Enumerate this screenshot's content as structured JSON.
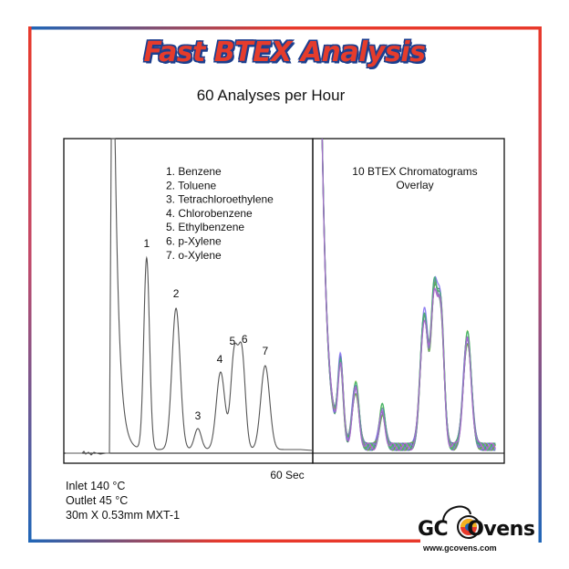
{
  "header": {
    "title": "Fast BTEX Analysis",
    "subtitle": "60 Analyses per Hour"
  },
  "colors": {
    "frame_top": "#e8392b",
    "frame_bottom": "#1f66b8",
    "title_fill": "#e53c2c",
    "title_outline": "#1c3f8f",
    "trace": "#555555",
    "overlay": [
      "#6a56c9",
      "#4aa84a",
      "#8fbf3a",
      "#a050c8",
      "#2e8b57",
      "#7b68ee",
      "#66bb33",
      "#9370db",
      "#3cb371",
      "#b266d4"
    ]
  },
  "chart_data": [
    {
      "type": "line",
      "xlabel": "60 Sec",
      "legend_items": [
        "1. Benzene",
        "2. Toluene",
        "3. Tetrachloroethylene",
        "4. Chlorobenzene",
        "5. Ethylbenzene",
        "6. p-Xylene",
        "7. o-Xylene"
      ],
      "peak_labels": [
        "1",
        "2",
        "3",
        "4",
        "5",
        "6",
        "7"
      ],
      "peaks": [
        {
          "label": "1",
          "compound": "Benzene",
          "time": 11.2,
          "height": 210
        },
        {
          "label": "2",
          "compound": "Toluene",
          "time": 20.5,
          "height": 155
        },
        {
          "label": "3",
          "compound": "Tetrachloroethylene",
          "time": 27.4,
          "height": 23
        },
        {
          "label": "4",
          "compound": "Chlorobenzene",
          "time": 34.6,
          "height": 85
        },
        {
          "label": "5",
          "compound": "Ethylbenzene",
          "time": 38.9,
          "height": 103
        },
        {
          "label": "6",
          "compound": "p-Xylene",
          "time": 41.3,
          "height": 105
        },
        {
          "label": "7",
          "compound": "o-Xylene",
          "time": 48.7,
          "height": 92
        }
      ]
    },
    {
      "type": "line",
      "title": "10 BTEX Chromatograms Overlay",
      "series_count": 10
    }
  ],
  "info": {
    "inlet": "Inlet 140 °C",
    "outlet": "Outlet 45 °C",
    "column": "30m X 0.53mm MXT-1"
  },
  "logo": {
    "name": "GC Ovens",
    "url": "www.gcovens.com"
  }
}
